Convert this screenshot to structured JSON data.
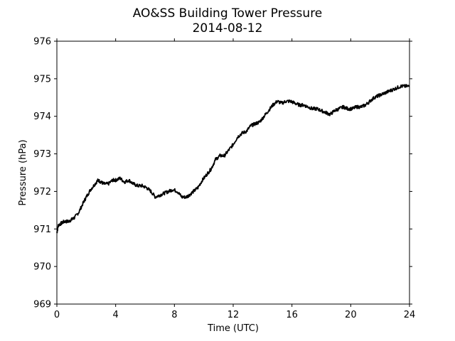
{
  "chart_data": {
    "type": "line",
    "title": "AO&SS Building Tower Pressure",
    "subtitle": "2014-08-12",
    "xlabel": "Time (UTC)",
    "ylabel": "Pressure (hPa)",
    "xlim": [
      0,
      24
    ],
    "ylim": [
      969,
      976
    ],
    "xticks": [
      0,
      4,
      8,
      12,
      16,
      20,
      24
    ],
    "yticks": [
      969,
      970,
      971,
      972,
      973,
      974,
      975,
      976
    ],
    "grid": false,
    "line_color": "#000000",
    "series": [
      {
        "x": [
          0,
          0.1,
          0.3,
          0.5,
          0.8,
          1.0,
          1.2,
          1.5,
          1.8,
          2.0,
          2.3,
          2.6,
          2.8,
          3.0,
          3.2,
          3.5,
          3.8,
          4.0,
          4.3,
          4.6,
          4.9,
          5.2,
          5.5,
          5.8,
          6.1,
          6.4,
          6.7,
          7.0,
          7.3,
          7.6,
          7.9,
          8.2,
          8.5,
          8.8,
          9.0,
          9.3,
          9.6,
          9.9,
          10.2,
          10.5,
          10.8,
          11.1,
          11.4,
          11.7,
          12.0,
          12.3,
          12.6,
          12.9,
          13.2,
          13.5,
          13.8,
          14.1,
          14.4,
          14.7,
          15.0,
          15.3,
          15.6,
          15.9,
          16.2,
          16.5,
          16.8,
          17.1,
          17.4,
          17.7,
          18.0,
          18.3,
          18.6,
          18.9,
          19.2,
          19.5,
          19.8,
          20.1,
          20.4,
          20.7,
          21.0,
          21.3,
          21.6,
          21.9,
          22.2,
          22.5,
          22.8,
          23.1,
          23.4,
          23.7,
          24.0
        ],
        "y": [
          970.9,
          971.1,
          971.15,
          971.2,
          971.2,
          971.25,
          971.3,
          971.45,
          971.7,
          971.85,
          972.05,
          972.2,
          972.3,
          972.25,
          972.2,
          972.2,
          972.3,
          972.3,
          972.35,
          972.25,
          972.3,
          972.2,
          972.15,
          972.15,
          972.1,
          972.0,
          971.85,
          971.9,
          971.95,
          972.0,
          972.05,
          972.0,
          971.85,
          971.85,
          971.9,
          972.0,
          972.1,
          972.3,
          972.45,
          972.6,
          972.85,
          972.95,
          972.95,
          973.1,
          973.25,
          973.45,
          973.55,
          973.6,
          973.75,
          973.8,
          973.85,
          974.0,
          974.15,
          974.3,
          974.4,
          974.35,
          974.4,
          974.4,
          974.35,
          974.3,
          974.3,
          974.25,
          974.2,
          974.2,
          974.15,
          974.1,
          974.05,
          974.15,
          974.2,
          974.25,
          974.2,
          974.2,
          974.25,
          974.25,
          974.3,
          974.4,
          974.5,
          974.55,
          974.6,
          974.65,
          974.7,
          974.75,
          974.8,
          974.8,
          974.8
        ]
      }
    ]
  }
}
